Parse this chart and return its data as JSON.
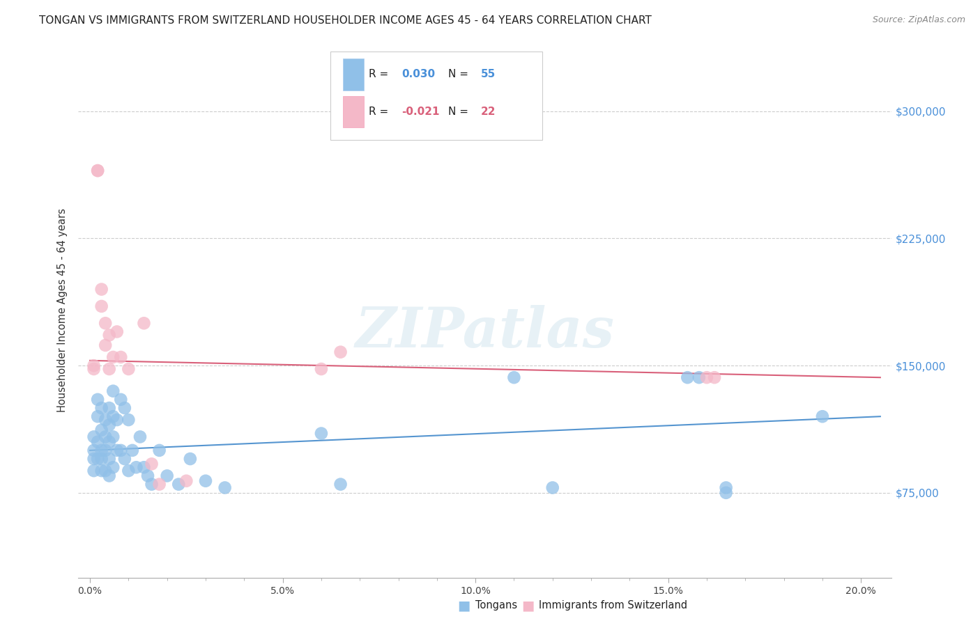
{
  "title": "TONGAN VS IMMIGRANTS FROM SWITZERLAND HOUSEHOLDER INCOME AGES 45 - 64 YEARS CORRELATION CHART",
  "source": "Source: ZipAtlas.com",
  "ylabel": "Householder Income Ages 45 - 64 years",
  "xlabel_ticks": [
    "0.0%",
    "",
    "",
    "",
    "",
    "5.0%",
    "",
    "",
    "",
    "",
    "10.0%",
    "",
    "",
    "",
    "",
    "15.0%",
    "",
    "",
    "",
    "",
    "20.0%"
  ],
  "xlabel_vals": [
    0.0,
    0.01,
    0.02,
    0.03,
    0.04,
    0.05,
    0.06,
    0.07,
    0.08,
    0.09,
    0.1,
    0.11,
    0.12,
    0.13,
    0.14,
    0.15,
    0.16,
    0.17,
    0.18,
    0.19,
    0.2
  ],
  "ytick_labels": [
    "$75,000",
    "$150,000",
    "$225,000",
    "$300,000"
  ],
  "ytick_vals": [
    75000,
    150000,
    225000,
    300000
  ],
  "xlim": [
    -0.003,
    0.208
  ],
  "ylim": [
    25000,
    340000
  ],
  "legend_label_blue": "Tongans",
  "legend_label_pink": "Immigrants from Switzerland",
  "blue_color": "#90c0e8",
  "pink_color": "#f4b8c8",
  "line_blue": "#5595d0",
  "line_pink": "#d9607a",
  "watermark": "ZIPatlas",
  "blue_x": [
    0.001,
    0.001,
    0.001,
    0.001,
    0.002,
    0.002,
    0.002,
    0.002,
    0.003,
    0.003,
    0.003,
    0.003,
    0.003,
    0.004,
    0.004,
    0.004,
    0.004,
    0.005,
    0.005,
    0.005,
    0.005,
    0.005,
    0.006,
    0.006,
    0.006,
    0.006,
    0.007,
    0.007,
    0.008,
    0.008,
    0.009,
    0.009,
    0.01,
    0.01,
    0.011,
    0.012,
    0.013,
    0.014,
    0.015,
    0.016,
    0.018,
    0.02,
    0.023,
    0.026,
    0.03,
    0.035,
    0.06,
    0.065,
    0.11,
    0.12,
    0.155,
    0.158,
    0.165,
    0.165,
    0.19
  ],
  "blue_y": [
    108000,
    100000,
    95000,
    88000,
    130000,
    120000,
    105000,
    95000,
    125000,
    112000,
    100000,
    95000,
    88000,
    118000,
    108000,
    100000,
    88000,
    125000,
    115000,
    105000,
    95000,
    85000,
    135000,
    120000,
    108000,
    90000,
    118000,
    100000,
    130000,
    100000,
    125000,
    95000,
    118000,
    88000,
    100000,
    90000,
    108000,
    90000,
    85000,
    80000,
    100000,
    85000,
    80000,
    95000,
    82000,
    78000,
    110000,
    80000,
    143000,
    78000,
    143000,
    143000,
    78000,
    75000,
    120000
  ],
  "pink_x": [
    0.001,
    0.001,
    0.002,
    0.002,
    0.003,
    0.003,
    0.004,
    0.004,
    0.005,
    0.005,
    0.006,
    0.007,
    0.008,
    0.01,
    0.014,
    0.016,
    0.018,
    0.025,
    0.06,
    0.065,
    0.16,
    0.162
  ],
  "pink_y": [
    150000,
    148000,
    265000,
    265000,
    195000,
    185000,
    175000,
    162000,
    168000,
    148000,
    155000,
    170000,
    155000,
    148000,
    175000,
    92000,
    80000,
    82000,
    148000,
    158000,
    143000,
    143000
  ]
}
